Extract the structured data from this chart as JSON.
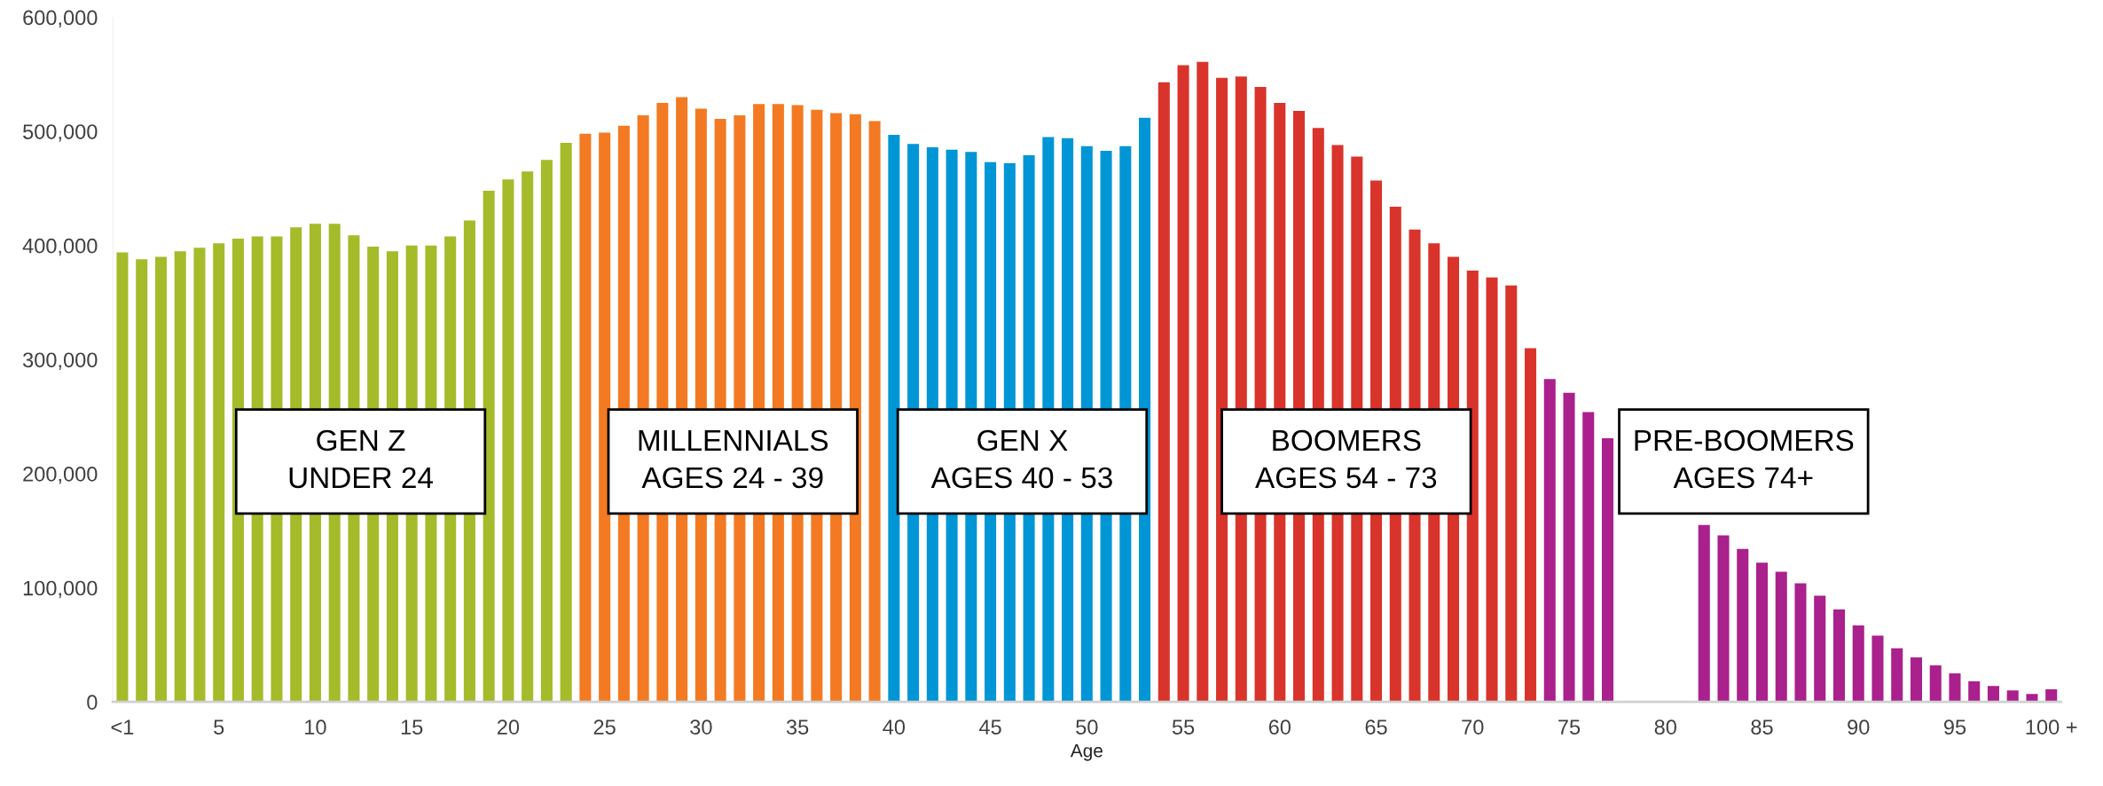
{
  "chart_data": {
    "type": "bar",
    "xlabel": "Age",
    "categories": [
      "<1",
      null,
      null,
      null,
      null,
      "5",
      null,
      null,
      null,
      null,
      "10",
      null,
      null,
      null,
      null,
      "15",
      null,
      null,
      null,
      null,
      "20",
      null,
      null,
      null,
      null,
      "25",
      null,
      null,
      null,
      null,
      "30",
      null,
      null,
      null,
      null,
      "35",
      null,
      null,
      null,
      null,
      "40",
      null,
      null,
      null,
      null,
      "45",
      null,
      null,
      null,
      null,
      "50",
      null,
      null,
      null,
      null,
      "55",
      null,
      null,
      null,
      null,
      "60",
      null,
      null,
      null,
      null,
      "65",
      null,
      null,
      null,
      null,
      "70",
      null,
      null,
      null,
      null,
      "75",
      null,
      null,
      null,
      null,
      "80",
      null,
      null,
      null,
      null,
      "85",
      null,
      null,
      null,
      null,
      "90",
      null,
      null,
      null,
      null,
      "95",
      null,
      null,
      null,
      null,
      "100 +"
    ],
    "values": [
      394000,
      388000,
      390000,
      395000,
      398000,
      402000,
      406000,
      408000,
      408000,
      416000,
      419000,
      419000,
      409000,
      399000,
      395000,
      400000,
      400000,
      408000,
      422000,
      448000,
      458000,
      465000,
      475000,
      490000,
      498000,
      499000,
      505000,
      514000,
      525000,
      530000,
      520000,
      511000,
      514000,
      524000,
      524000,
      523000,
      519000,
      516000,
      515000,
      509000,
      497000,
      489000,
      486000,
      484000,
      482000,
      473000,
      472000,
      479000,
      495000,
      494000,
      487000,
      483000,
      487000,
      512000,
      543000,
      558000,
      561000,
      547000,
      548000,
      539000,
      525000,
      518000,
      503000,
      488000,
      478000,
      457000,
      434000,
      414000,
      402000,
      390000,
      378000,
      372000,
      365000,
      310000,
      283000,
      271000,
      254000,
      231000,
      null,
      null,
      null,
      null,
      155000,
      146000,
      134000,
      122000,
      114000,
      104000,
      93000,
      81000,
      67000,
      58000,
      47000,
      39000,
      32000,
      25000,
      18000,
      14000,
      10000,
      7000,
      11000
    ],
    "colors": [
      "#a5bb2a",
      "#a5bb2a",
      "#a5bb2a",
      "#a5bb2a",
      "#a5bb2a",
      "#a5bb2a",
      "#a5bb2a",
      "#a5bb2a",
      "#a5bb2a",
      "#a5bb2a",
      "#a5bb2a",
      "#a5bb2a",
      "#a5bb2a",
      "#a5bb2a",
      "#a5bb2a",
      "#a5bb2a",
      "#a5bb2a",
      "#a5bb2a",
      "#a5bb2a",
      "#a5bb2a",
      "#a5bb2a",
      "#a5bb2a",
      "#a5bb2a",
      "#a5bb2a",
      "#f37a22",
      "#f37a22",
      "#f37a22",
      "#f37a22",
      "#f37a22",
      "#f37a22",
      "#f37a22",
      "#f37a22",
      "#f37a22",
      "#f37a22",
      "#f37a22",
      "#f37a22",
      "#f37a22",
      "#f37a22",
      "#f37a22",
      "#f37a22",
      "#0096d6",
      "#0096d6",
      "#0096d6",
      "#0096d6",
      "#0096d6",
      "#0096d6",
      "#0096d6",
      "#0096d6",
      "#0096d6",
      "#0096d6",
      "#0096d6",
      "#0096d6",
      "#0096d6",
      "#0096d6",
      "#d9342b",
      "#d9342b",
      "#d9342b",
      "#d9342b",
      "#d9342b",
      "#d9342b",
      "#d9342b",
      "#d9342b",
      "#d9342b",
      "#d9342b",
      "#d9342b",
      "#d9342b",
      "#d9342b",
      "#d9342b",
      "#d9342b",
      "#d9342b",
      "#d9342b",
      "#d9342b",
      "#d9342b",
      "#d9342b",
      "#aa208c",
      "#aa208c",
      "#aa208c",
      "#aa208c",
      "#aa208c",
      "#aa208c",
      "#aa208c",
      "#aa208c",
      "#aa208c",
      "#aa208c",
      "#aa208c",
      "#aa208c",
      "#aa208c",
      "#aa208c",
      "#aa208c",
      "#aa208c",
      "#aa208c",
      "#aa208c",
      "#aa208c",
      "#aa208c",
      "#aa208c",
      "#aa208c",
      "#aa208c",
      "#aa208c",
      "#aa208c",
      "#aa208c",
      "#aa208c"
    ],
    "ylim": [
      0,
      600000
    ],
    "yticks": [
      {
        "value": 0,
        "label": "0"
      },
      {
        "value": 100000,
        "label": "100,000"
      },
      {
        "value": 200000,
        "label": "200,000"
      },
      {
        "value": 300000,
        "label": "300,000"
      },
      {
        "value": 400000,
        "label": "400,000"
      },
      {
        "value": 500000,
        "label": "500,000"
      },
      {
        "value": 600000,
        "label": "600,000"
      }
    ],
    "grid": false,
    "annotations": [
      "GEN Z\nUNDER 24",
      "MILLENNIALS\nAGES 24 - 39",
      "GEN X\nAGES 40 - 53",
      "BOOMERS\nAGES 54 - 73",
      "PRE-BOOMERS\nAGES 74+"
    ]
  }
}
